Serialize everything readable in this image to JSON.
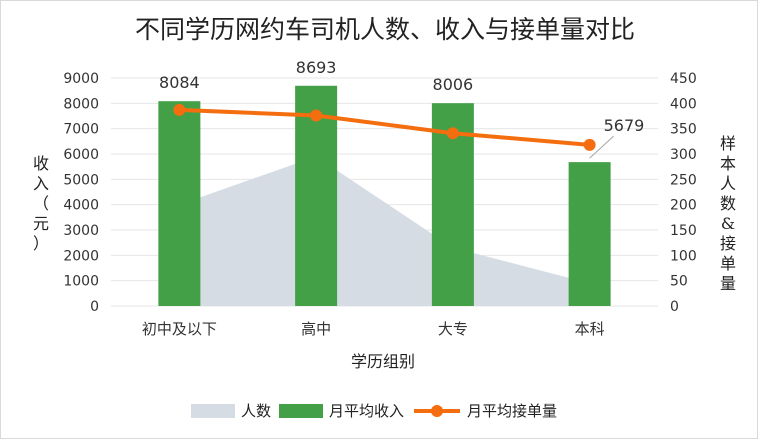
{
  "chart_data": {
    "type": "combo",
    "title": "不同学历网约车司机人数、收入与接单量对比",
    "xlabel": "学历组别",
    "ylabel_left": "收入（元）",
    "ylabel_right": "样本人数&接单量",
    "categories": [
      "初中及以下",
      "高中",
      "大专",
      "本科"
    ],
    "y_left_lim": [
      0,
      9000
    ],
    "y_left_ticks": [
      0,
      1000,
      2000,
      3000,
      4000,
      5000,
      6000,
      7000,
      8000,
      9000
    ],
    "y_right_lim": [
      0,
      450
    ],
    "y_right_ticks": [
      0,
      50,
      100,
      150,
      200,
      250,
      300,
      350,
      400,
      450
    ],
    "grid": true,
    "legend_position": "bottom",
    "series": [
      {
        "name": "人数",
        "type": "area",
        "axis": "right",
        "color": "#d6dce4",
        "values": [
          200,
          295,
          115,
          45
        ]
      },
      {
        "name": "月平均收入",
        "type": "bar",
        "axis": "left",
        "color": "#43a047",
        "values": [
          8084,
          8693,
          8006,
          5679
        ]
      },
      {
        "name": "月平均接单量",
        "type": "line",
        "axis": "right",
        "color": "#f46d0e",
        "values": [
          387,
          376,
          341,
          318
        ]
      }
    ]
  }
}
